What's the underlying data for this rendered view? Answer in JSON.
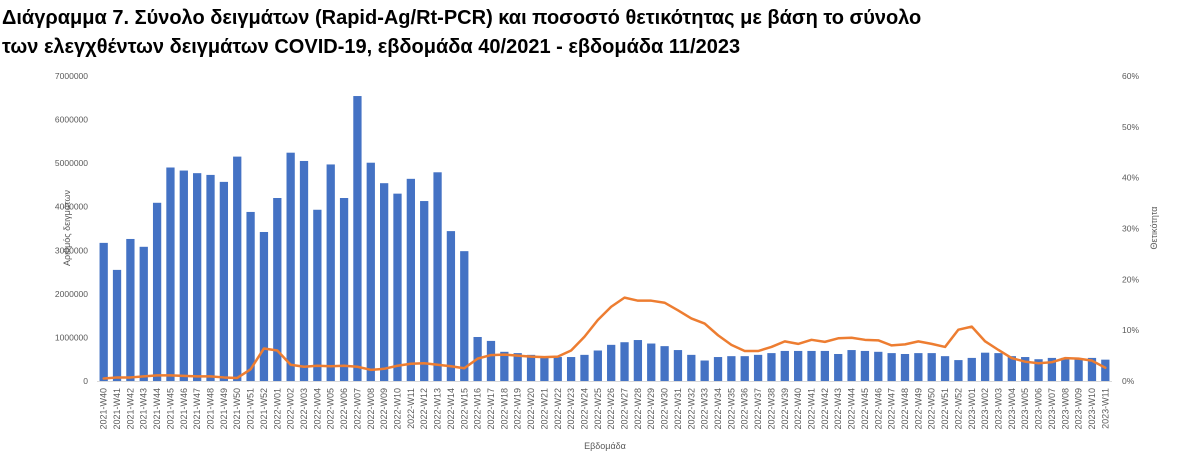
{
  "chart_data": {
    "type": "bar",
    "title": [
      "Διάγραμμα 7. Σύνολο δειγμάτων (Rapid-Ag/Rt-PCR) και ποσοστό θετικότητας με βάση το σύνολο",
      "των ελεγχθέντων δειγμάτων COVID-19, εβδομάδα 40/2021 - εβδομάδα 11/2023"
    ],
    "xlabel": "Εβδομάδα",
    "ylabel": "Αριθμός δειγμάτων",
    "y2label": "Θετικότητα",
    "ylim": [
      0,
      7000000
    ],
    "y2lim": [
      0,
      60
    ],
    "yticks": [
      "0",
      "1000000",
      "2000000",
      "3000000",
      "4000000",
      "5000000",
      "6000000",
      "7000000"
    ],
    "y2ticks": [
      "0%",
      "10%",
      "20%",
      "30%",
      "40%",
      "50%",
      "60%"
    ],
    "grid": false,
    "legend": "none",
    "categories": [
      "2021-W40",
      "2021-W41",
      "2021-W42",
      "2021-W43",
      "2021-W44",
      "2021-W45",
      "2021-W46",
      "2021-W47",
      "2021-W48",
      "2021-W49",
      "2021-W50",
      "2021-W51",
      "2021-W52",
      "2022-W01",
      "2022-W02",
      "2022-W03",
      "2022-W04",
      "2022-W05",
      "2022-W06",
      "2022-W07",
      "2022-W08",
      "2022-W09",
      "2022-W10",
      "2022-W11",
      "2022-W12",
      "2022-W13",
      "2022-W14",
      "2022-W15",
      "2022-W16",
      "2022-W17",
      "2022-W18",
      "2022-W19",
      "2022-W20",
      "2022-W21",
      "2022-W22",
      "2022-W23",
      "2022-W24",
      "2022-W25",
      "2022-W26",
      "2022-W27",
      "2022-W28",
      "2022-W29",
      "2022-W30",
      "2022-W31",
      "2022-W32",
      "2022-W33",
      "2022-W34",
      "2022-W35",
      "2022-W36",
      "2022-W37",
      "2022-W38",
      "2022-W39",
      "2022-W40",
      "2022-W41",
      "2022-W42",
      "2022-W43",
      "2022-W44",
      "2022-W45",
      "2022-W46",
      "2022-W47",
      "2022-W48",
      "2022-W49",
      "2022-W50",
      "2022-W51",
      "2022-W52",
      "2023-W01",
      "2023-W02",
      "2023-W03",
      "2023-W04",
      "2023-W05",
      "2023-W06",
      "2023-W07",
      "2023-W08",
      "2023-W09",
      "2023-W10",
      "2023-W11"
    ],
    "series": [
      {
        "type": "bar",
        "axis": "left",
        "color": "#4472C4",
        "values": [
          3170000,
          2550000,
          3260000,
          3080000,
          4090000,
          4900000,
          4830000,
          4770000,
          4730000,
          4570000,
          5150000,
          3880000,
          3420000,
          4200000,
          5240000,
          5050000,
          3930000,
          4970000,
          4200000,
          6540000,
          5010000,
          4540000,
          4300000,
          4640000,
          4130000,
          4790000,
          3440000,
          2980000,
          1010000,
          920000,
          670000,
          640000,
          600000,
          560000,
          550000,
          550000,
          600000,
          700000,
          830000,
          890000,
          940000,
          860000,
          800000,
          710000,
          600000,
          470000,
          550000,
          570000,
          570000,
          600000,
          640000,
          690000,
          690000,
          690000,
          690000,
          620000,
          710000,
          690000,
          670000,
          640000,
          620000,
          640000,
          640000,
          570000,
          480000,
          530000,
          650000,
          640000,
          570000,
          550000,
          500000,
          530000,
          530000,
          500000,
          530000,
          490000
        ]
      },
      {
        "type": "line",
        "axis": "right",
        "color": "#ED7D31",
        "values": [
          0.5,
          0.7,
          0.7,
          0.9,
          1.1,
          1.1,
          1.0,
          0.9,
          0.9,
          0.7,
          0.6,
          2.3,
          6.4,
          6.0,
          3.2,
          2.8,
          3.0,
          2.9,
          3.0,
          2.8,
          2.2,
          2.4,
          3.0,
          3.4,
          3.5,
          3.2,
          2.9,
          2.5,
          4.4,
          5.1,
          5.2,
          5.0,
          4.8,
          4.7,
          4.8,
          6.0,
          8.7,
          12.0,
          14.6,
          16.4,
          15.8,
          15.8,
          15.4,
          13.9,
          12.3,
          11.3,
          9.0,
          7.1,
          5.9,
          5.9,
          6.7,
          7.8,
          7.3,
          8.1,
          7.7,
          8.4,
          8.5,
          8.1,
          8.0,
          7.0,
          7.2,
          7.8,
          7.3,
          6.7,
          10.1,
          10.7,
          7.8,
          6.1,
          4.5,
          3.8,
          3.5,
          3.7,
          4.5,
          4.4,
          4.0,
          2.6
        ]
      }
    ]
  }
}
